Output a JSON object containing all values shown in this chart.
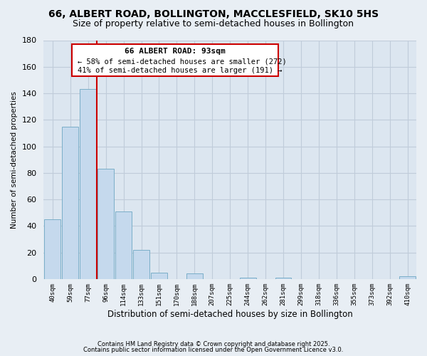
{
  "title": "66, ALBERT ROAD, BOLLINGTON, MACCLESFIELD, SK10 5HS",
  "subtitle": "Size of property relative to semi-detached houses in Bollington",
  "xlabel": "Distribution of semi-detached houses by size in Bollington",
  "ylabel": "Number of semi-detached properties",
  "categories": [
    "40sqm",
    "59sqm",
    "77sqm",
    "96sqm",
    "114sqm",
    "133sqm",
    "151sqm",
    "170sqm",
    "188sqm",
    "207sqm",
    "225sqm",
    "244sqm",
    "262sqm",
    "281sqm",
    "299sqm",
    "318sqm",
    "336sqm",
    "355sqm",
    "373sqm",
    "392sqm",
    "410sqm"
  ],
  "values": [
    45,
    115,
    143,
    83,
    51,
    22,
    5,
    0,
    4,
    0,
    0,
    1,
    0,
    1,
    0,
    0,
    0,
    0,
    0,
    0,
    2
  ],
  "bar_color": "#c5d9ed",
  "bar_edge_color": "#7aaec8",
  "vline_color": "#cc0000",
  "annotation_title": "66 ALBERT ROAD: 93sqm",
  "annotation_line1": "← 58% of semi-detached houses are smaller (272)",
  "annotation_line2": "41% of semi-detached houses are larger (191) →",
  "annotation_box_color": "#ffffff",
  "annotation_box_edge": "#cc0000",
  "ylim": [
    0,
    180
  ],
  "yticks": [
    0,
    20,
    40,
    60,
    80,
    100,
    120,
    140,
    160,
    180
  ],
  "footnote1": "Contains HM Land Registry data © Crown copyright and database right 2025.",
  "footnote2": "Contains public sector information licensed under the Open Government Licence v3.0.",
  "bg_color": "#e8eef4",
  "plot_bg_color": "#dce6f0",
  "grid_color": "#c0ccda",
  "title_fontsize": 10,
  "subtitle_fontsize": 9
}
